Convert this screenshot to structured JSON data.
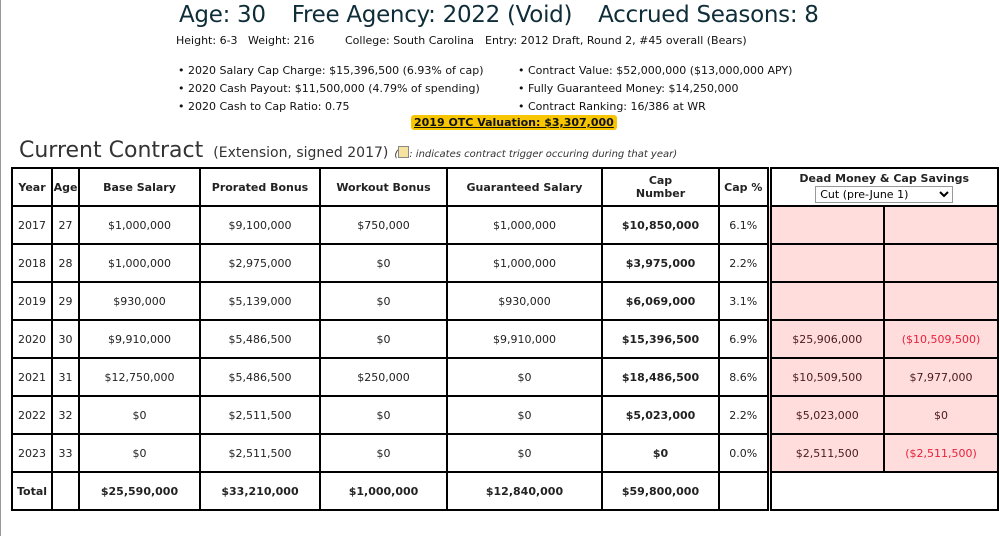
{
  "header": {
    "age": "Age: 30",
    "free_agency": "Free Agency: 2022 (Void)",
    "accrued": "Accrued Seasons: 8"
  },
  "bio": {
    "height": "Height: 6-3",
    "weight": "Weight: 216",
    "college": "College: South Carolina",
    "entry": "Entry: 2012 Draft, Round 2, #45 overall (Bears)"
  },
  "facts_left": [
    "2020 Salary Cap Charge: $15,396,500 (6.93% of cap)",
    "2020 Cash Payout: $11,500,000 (4.79% of spending)",
    "2020 Cash to Cap Ratio: 0.75"
  ],
  "facts_right": [
    "Contract Value: $52,000,000 ($13,000,000 APY)",
    "Fully Guaranteed Money: $14,250,000",
    "Contract Ranking: 16/386 at WR"
  ],
  "otc_valuation": "2019 OTC Valuation: $3,307,000",
  "contract": {
    "title": "Current Contract",
    "subtitle": "(Extension, signed 2017)",
    "note_open": "(",
    "note": ": indicates contract trigger occuring during that year)"
  },
  "table": {
    "headers": [
      "Year",
      "Age",
      "Base Salary",
      "Prorated Bonus",
      "Workout Bonus",
      "Guaranteed Salary",
      "Cap Number",
      "Cap %",
      "Dead Money & Cap Savings"
    ],
    "dropdown": "Cut (pre-June 1)",
    "rows": [
      [
        "2017",
        "27",
        "$1,000,000",
        "$9,100,000",
        "$750,000",
        "$1,000,000",
        "$10,850,000",
        "6.1%",
        "",
        ""
      ],
      [
        "2018",
        "28",
        "$1,000,000",
        "$2,975,000",
        "$0",
        "$1,000,000",
        "$3,975,000",
        "2.2%",
        "",
        ""
      ],
      [
        "2019",
        "29",
        "$930,000",
        "$5,139,000",
        "$0",
        "$930,000",
        "$6,069,000",
        "3.1%",
        "",
        ""
      ],
      [
        "2020",
        "30",
        "$9,910,000",
        "$5,486,500",
        "$0",
        "$9,910,000",
        "$15,396,500",
        "6.9%",
        "$25,906,000",
        "($10,509,500)"
      ],
      [
        "2021",
        "31",
        "$12,750,000",
        "$5,486,500",
        "$250,000",
        "$0",
        "$18,486,500",
        "8.6%",
        "$10,509,500",
        "$7,977,000"
      ],
      [
        "2022",
        "32",
        "$0",
        "$2,511,500",
        "$0",
        "$0",
        "$5,023,000",
        "2.2%",
        "$5,023,000",
        "$0"
      ],
      [
        "2023",
        "33",
        "$0",
        "$2,511,500",
        "$0",
        "$0",
        "$0",
        "0.0%",
        "$2,511,500",
        "($2,511,500)"
      ]
    ],
    "total": [
      "Total",
      "",
      "$25,590,000",
      "$33,210,000",
      "$1,000,000",
      "$12,840,000",
      "$59,800,000"
    ]
  },
  "colors": {
    "highlight": "#f7c600",
    "dead_money_bg": "#ffdddd",
    "negative": "#e8213a"
  }
}
